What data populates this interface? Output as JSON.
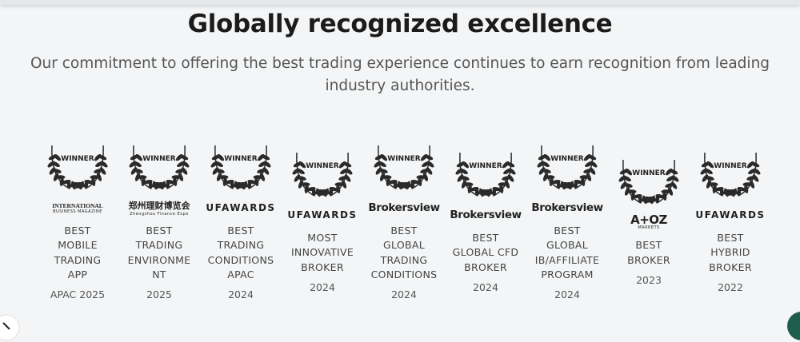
{
  "header": {
    "title": "Globally recognized excellence",
    "subtitle": "Our commitment to offering the best trading experience continues to earn recognition from leading industry authorities."
  },
  "awards": [
    {
      "badge": "WINNER",
      "issuer": "INTERNATIONAL",
      "issuer_sub": "BUSINESS MAGAZINE",
      "title": "BEST MOBILE TRADING APP",
      "year": "APAC 2025"
    },
    {
      "badge": "WINNER",
      "issuer": "郑州理财博览会",
      "issuer_sub": "Zhengzhou Finance Expo",
      "title": "BEST TRADING ENVIRONMENT",
      "year": "2025"
    },
    {
      "badge": "WINNER",
      "issuer": "UFAWARDS",
      "title": "BEST TRADING CONDITIONS APAC",
      "year": "2024"
    },
    {
      "badge": "WINNER",
      "issuer": "UFAWARDS",
      "title": "MOST INNOVATIVE BROKER",
      "year": "2024"
    },
    {
      "badge": "WINNER",
      "issuer": "Brokersview",
      "title": "BEST GLOBAL TRADING CONDITIONS",
      "year": "2024"
    },
    {
      "badge": "WINNER",
      "issuer": "Brokersview",
      "title": "BEST GLOBAL CFD BROKER",
      "year": "2024"
    },
    {
      "badge": "WINNER",
      "issuer": "Brokersview",
      "title": "BEST GLOBAL IB/AFFILIATE PROGRAM",
      "year": "2024"
    },
    {
      "badge": "WINNER",
      "issuer": "A+OZ",
      "issuer_sub": "MARKETS",
      "title": "BEST BROKER",
      "year": "2023"
    },
    {
      "badge": "WINNER",
      "issuer": "UFAWARDS",
      "title": "BEST HYBRID BROKER",
      "year": "2022"
    }
  ]
}
